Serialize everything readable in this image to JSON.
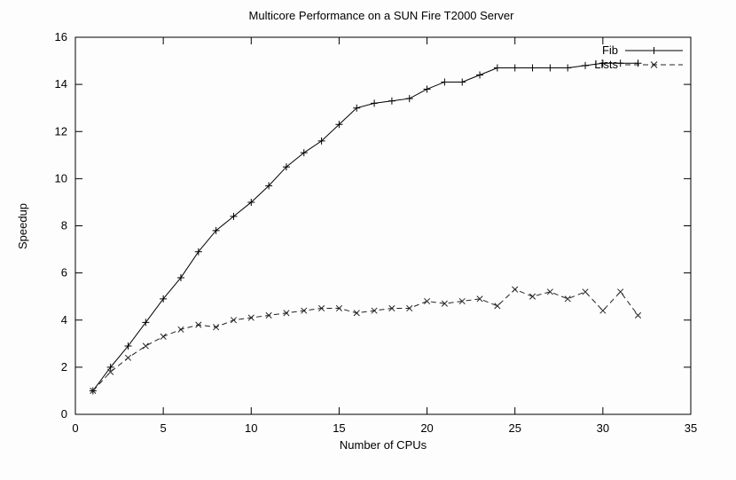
{
  "chart_data": {
    "type": "line",
    "title": "Multicore Performance on a SUN Fire T2000 Server",
    "xlabel": "Number of CPUs",
    "ylabel": "Speedup",
    "xlim": [
      0,
      35
    ],
    "ylim": [
      0,
      16
    ],
    "xticks": [
      0,
      5,
      10,
      15,
      20,
      25,
      30,
      35
    ],
    "yticks": [
      0,
      2,
      4,
      6,
      8,
      10,
      12,
      14,
      16
    ],
    "grid": false,
    "legend_position": "top-right",
    "frame_color": "#000000",
    "x": [
      1,
      2,
      3,
      4,
      5,
      6,
      7,
      8,
      9,
      10,
      11,
      12,
      13,
      14,
      15,
      16,
      17,
      18,
      19,
      20,
      21,
      22,
      23,
      24,
      25,
      26,
      27,
      28,
      29,
      30,
      31,
      32
    ],
    "series": [
      {
        "name": "Fib",
        "line": "solid",
        "marker": "plus",
        "color": "#000000",
        "values": [
          1.0,
          2.0,
          2.9,
          3.9,
          4.9,
          5.8,
          6.9,
          7.8,
          8.4,
          9.0,
          9.7,
          10.5,
          11.1,
          11.6,
          12.3,
          13.0,
          13.2,
          13.3,
          13.4,
          13.8,
          14.1,
          14.1,
          14.4,
          14.7,
          14.7,
          14.7,
          14.7,
          14.7,
          14.8,
          14.9,
          14.9,
          14.9
        ]
      },
      {
        "name": "Lists",
        "line": "dashed",
        "marker": "cross",
        "color": "#222222",
        "values": [
          1.0,
          1.8,
          2.4,
          2.9,
          3.3,
          3.6,
          3.8,
          3.7,
          4.0,
          4.1,
          4.2,
          4.3,
          4.4,
          4.5,
          4.5,
          4.3,
          4.4,
          4.5,
          4.5,
          4.8,
          4.7,
          4.8,
          4.9,
          4.6,
          5.3,
          5.0,
          5.2,
          4.9,
          5.2,
          4.4,
          5.2,
          4.2
        ]
      }
    ]
  }
}
